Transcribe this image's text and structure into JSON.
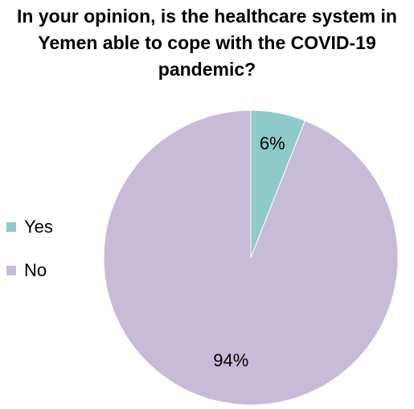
{
  "chart_data": {
    "type": "pie",
    "title_lines": [
      "In your opinion, is the healthcare system in",
      "Yemen able to cope with the COVID-19",
      "pandemic?"
    ],
    "categories": [
      "Yes",
      "No"
    ],
    "values": [
      6,
      94
    ],
    "data_labels": [
      "6%",
      "94%"
    ],
    "colors": [
      "#8ecac9",
      "#c8bbd7"
    ],
    "legend_position": "left"
  }
}
